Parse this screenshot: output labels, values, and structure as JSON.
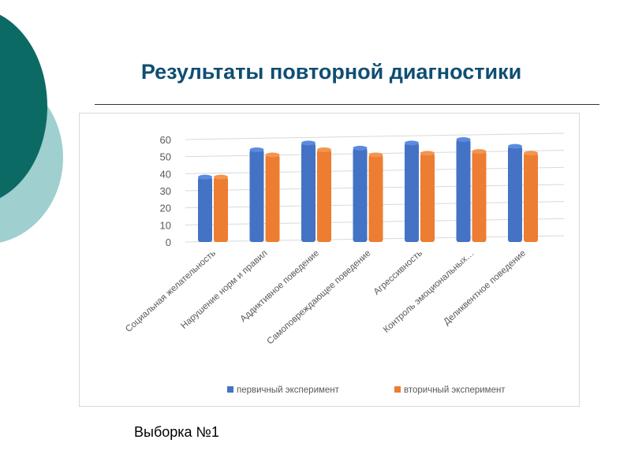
{
  "title": "Результаты повторной диагностики",
  "caption": "Выборка №1",
  "chart_data": {
    "type": "bar",
    "title": "",
    "xlabel": "",
    "ylabel": "",
    "ylim": [
      0,
      60
    ],
    "yticks": [
      0,
      10,
      20,
      30,
      40,
      50,
      60
    ],
    "grid": true,
    "legend": "bottom",
    "categories": [
      "Социальная желательность",
      "Нарушение норм и правил",
      "Аддиктивное поведение",
      "Самоповреждающее поведение",
      "Агрессивность",
      "Контроль эмоциональных…",
      "Деликвентное поведение"
    ],
    "series": [
      {
        "name": "первичный эксперимент",
        "color": "#4472c4",
        "values": [
          38,
          54,
          58,
          55,
          58,
          60,
          56
        ]
      },
      {
        "name": "вторичный эксперимент",
        "color": "#ed7d31",
        "values": [
          38,
          51,
          54,
          51,
          52,
          53,
          52
        ]
      }
    ]
  }
}
